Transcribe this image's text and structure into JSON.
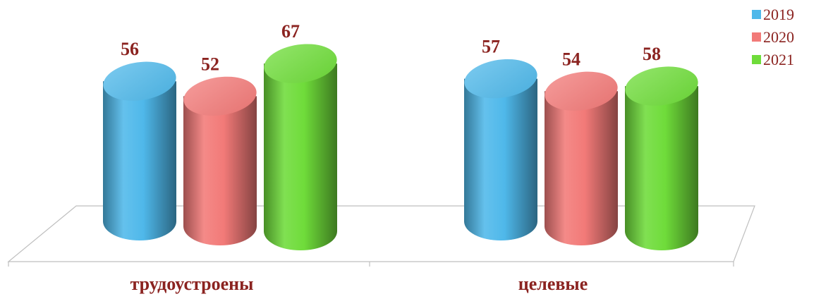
{
  "chart_data": {
    "type": "bar",
    "style": "3d-cylinder",
    "categories": [
      "трудоустроены",
      "целевые"
    ],
    "series": [
      {
        "name": "2019",
        "color": "#4fb8ea",
        "values": [
          56,
          57
        ]
      },
      {
        "name": "2020",
        "color": "#f27a78",
        "values": [
          52,
          54
        ]
      },
      {
        "name": "2021",
        "color": "#6fdc3a",
        "values": [
          67,
          58
        ]
      }
    ],
    "title": "",
    "xlabel": "",
    "ylabel": "",
    "ylim": [
      0,
      75
    ],
    "grid": false,
    "legend": "top-right",
    "label_color": "#8b2320"
  }
}
